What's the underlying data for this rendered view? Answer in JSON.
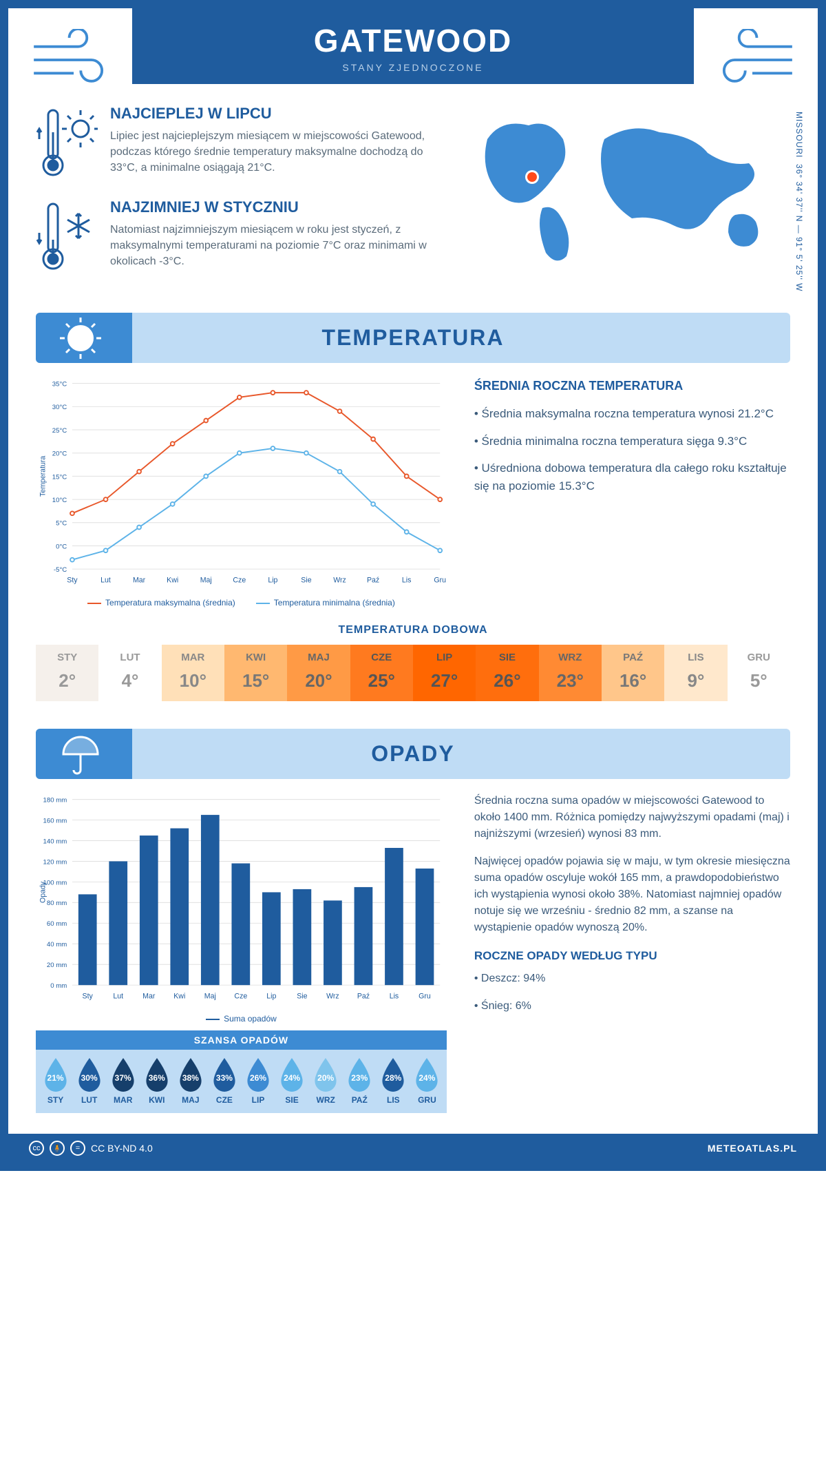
{
  "header": {
    "title": "GATEWOOD",
    "subtitle": "STANY ZJEDNOCZONE"
  },
  "coords": "36° 34' 37'' N — 91° 5' 25'' W",
  "state": "MISSOURI",
  "colors": {
    "primary": "#1f5c9e",
    "light": "#bfdcf5",
    "mid": "#3d8bd3",
    "hot": "#e8572a",
    "cold": "#5db3e8"
  },
  "facts": {
    "hot": {
      "title": "NAJCIEPLEJ W LIPCU",
      "body": "Lipiec jest najcieplejszym miesiącem w miejscowości Gatewood, podczas którego średnie temperatury maksymalne dochodzą do 33°C, a minimalne osiągają 21°C."
    },
    "cold": {
      "title": "NAJZIMNIEJ W STYCZNIU",
      "body": "Natomiast najzimniejszym miesiącem w roku jest styczeń, z maksymalnymi temperaturami na poziomie 7°C oraz minimami w okolicach -3°C."
    }
  },
  "temp_section": {
    "heading": "TEMPERATURA",
    "chart": {
      "type": "line",
      "ylabel": "Temperatura",
      "months": [
        "Sty",
        "Lut",
        "Mar",
        "Kwi",
        "Maj",
        "Cze",
        "Lip",
        "Sie",
        "Wrz",
        "Paź",
        "Lis",
        "Gru"
      ],
      "ylim": [
        -5,
        35
      ],
      "ytick_step": 5,
      "grid_color": "#e0e0e0",
      "series": [
        {
          "name": "Temperatura maksymalna (średnia)",
          "color": "#e8572a",
          "values": [
            7,
            10,
            16,
            22,
            27,
            32,
            33,
            33,
            29,
            23,
            15,
            10
          ]
        },
        {
          "name": "Temperatura minimalna (średnia)",
          "color": "#5db3e8",
          "values": [
            -3,
            -1,
            4,
            9,
            15,
            20,
            21,
            20,
            16,
            9,
            3,
            -1
          ]
        }
      ]
    },
    "annual": {
      "title": "ŚREDNIA ROCZNA TEMPERATURA",
      "p1": "• Średnia maksymalna roczna temperatura wynosi 21.2°C",
      "p2": "• Średnia minimalna roczna temperatura sięga 9.3°C",
      "p3": "• Uśredniona dobowa temperatura dla całego roku kształtuje się na poziomie 15.3°C"
    },
    "daily_title": "TEMPERATURA DOBOWA",
    "daily": [
      {
        "m": "STY",
        "v": "2°",
        "bg": "#f5f0eb",
        "fg": "#999"
      },
      {
        "m": "LUT",
        "v": "4°",
        "bg": "#ffffff",
        "fg": "#999"
      },
      {
        "m": "MAR",
        "v": "10°",
        "bg": "#ffe0b8",
        "fg": "#888"
      },
      {
        "m": "KWI",
        "v": "15°",
        "bg": "#ffb870",
        "fg": "#777"
      },
      {
        "m": "MAJ",
        "v": "20°",
        "bg": "#ff9a45",
        "fg": "#666"
      },
      {
        "m": "CZE",
        "v": "25°",
        "bg": "#ff7a1f",
        "fg": "#555"
      },
      {
        "m": "LIP",
        "v": "27°",
        "bg": "#ff6600",
        "fg": "#555"
      },
      {
        "m": "SIE",
        "v": "26°",
        "bg": "#ff6e0d",
        "fg": "#555"
      },
      {
        "m": "WRZ",
        "v": "23°",
        "bg": "#ff8a33",
        "fg": "#666"
      },
      {
        "m": "PAŹ",
        "v": "16°",
        "bg": "#ffc68a",
        "fg": "#777"
      },
      {
        "m": "LIS",
        "v": "9°",
        "bg": "#ffe8cc",
        "fg": "#888"
      },
      {
        "m": "GRU",
        "v": "5°",
        "bg": "#ffffff",
        "fg": "#999"
      }
    ]
  },
  "precip_section": {
    "heading": "OPADY",
    "chart": {
      "type": "bar",
      "ylabel": "Opady",
      "months": [
        "Sty",
        "Lut",
        "Mar",
        "Kwi",
        "Maj",
        "Cze",
        "Lip",
        "Sie",
        "Wrz",
        "Paź",
        "Lis",
        "Gru"
      ],
      "ylim": [
        0,
        180
      ],
      "ytick_step": 20,
      "bar_color": "#1f5c9e",
      "grid_color": "#e0e0e0",
      "values": [
        88,
        120,
        145,
        152,
        165,
        118,
        90,
        93,
        82,
        95,
        133,
        113
      ],
      "series_name": "Suma opadów"
    },
    "body": {
      "p1": "Średnia roczna suma opadów w miejscowości Gatewood to około 1400 mm. Różnica pomiędzy najwyższymi opadami (maj) i najniższymi (wrzesień) wynosi 83 mm.",
      "p2": "Najwięcej opadów pojawia się w maju, w tym okresie miesięczna suma opadów oscyluje wokół 165 mm, a prawdopodobieństwo ich wystąpienia wynosi około 38%. Natomiast najmniej opadów notuje się we wrześniu - średnio 82 mm, a szanse na wystąpienie opadów wynoszą 20%."
    },
    "bytype": {
      "title": "ROCZNE OPADY WEDŁUG TYPU",
      "rain": "• Deszcz: 94%",
      "snow": "• Śnieg: 6%"
    },
    "chance_title": "SZANSA OPADÓW",
    "chance": [
      {
        "m": "STY",
        "pct": "21%",
        "c": "#5db3e8"
      },
      {
        "m": "LUT",
        "pct": "30%",
        "c": "#1f5c9e"
      },
      {
        "m": "MAR",
        "pct": "37%",
        "c": "#163f6b"
      },
      {
        "m": "KWI",
        "pct": "36%",
        "c": "#163f6b"
      },
      {
        "m": "MAJ",
        "pct": "38%",
        "c": "#163f6b"
      },
      {
        "m": "CZE",
        "pct": "33%",
        "c": "#1f5c9e"
      },
      {
        "m": "LIP",
        "pct": "26%",
        "c": "#3d8bd3"
      },
      {
        "m": "SIE",
        "pct": "24%",
        "c": "#5db3e8"
      },
      {
        "m": "WRZ",
        "pct": "20%",
        "c": "#7fc4ec"
      },
      {
        "m": "PAŹ",
        "pct": "23%",
        "c": "#5db3e8"
      },
      {
        "m": "LIS",
        "pct": "28%",
        "c": "#1f5c9e"
      },
      {
        "m": "GRU",
        "pct": "24%",
        "c": "#5db3e8"
      }
    ]
  },
  "footer": {
    "license": "CC BY-ND 4.0",
    "site": "METEOATLAS.PL"
  }
}
